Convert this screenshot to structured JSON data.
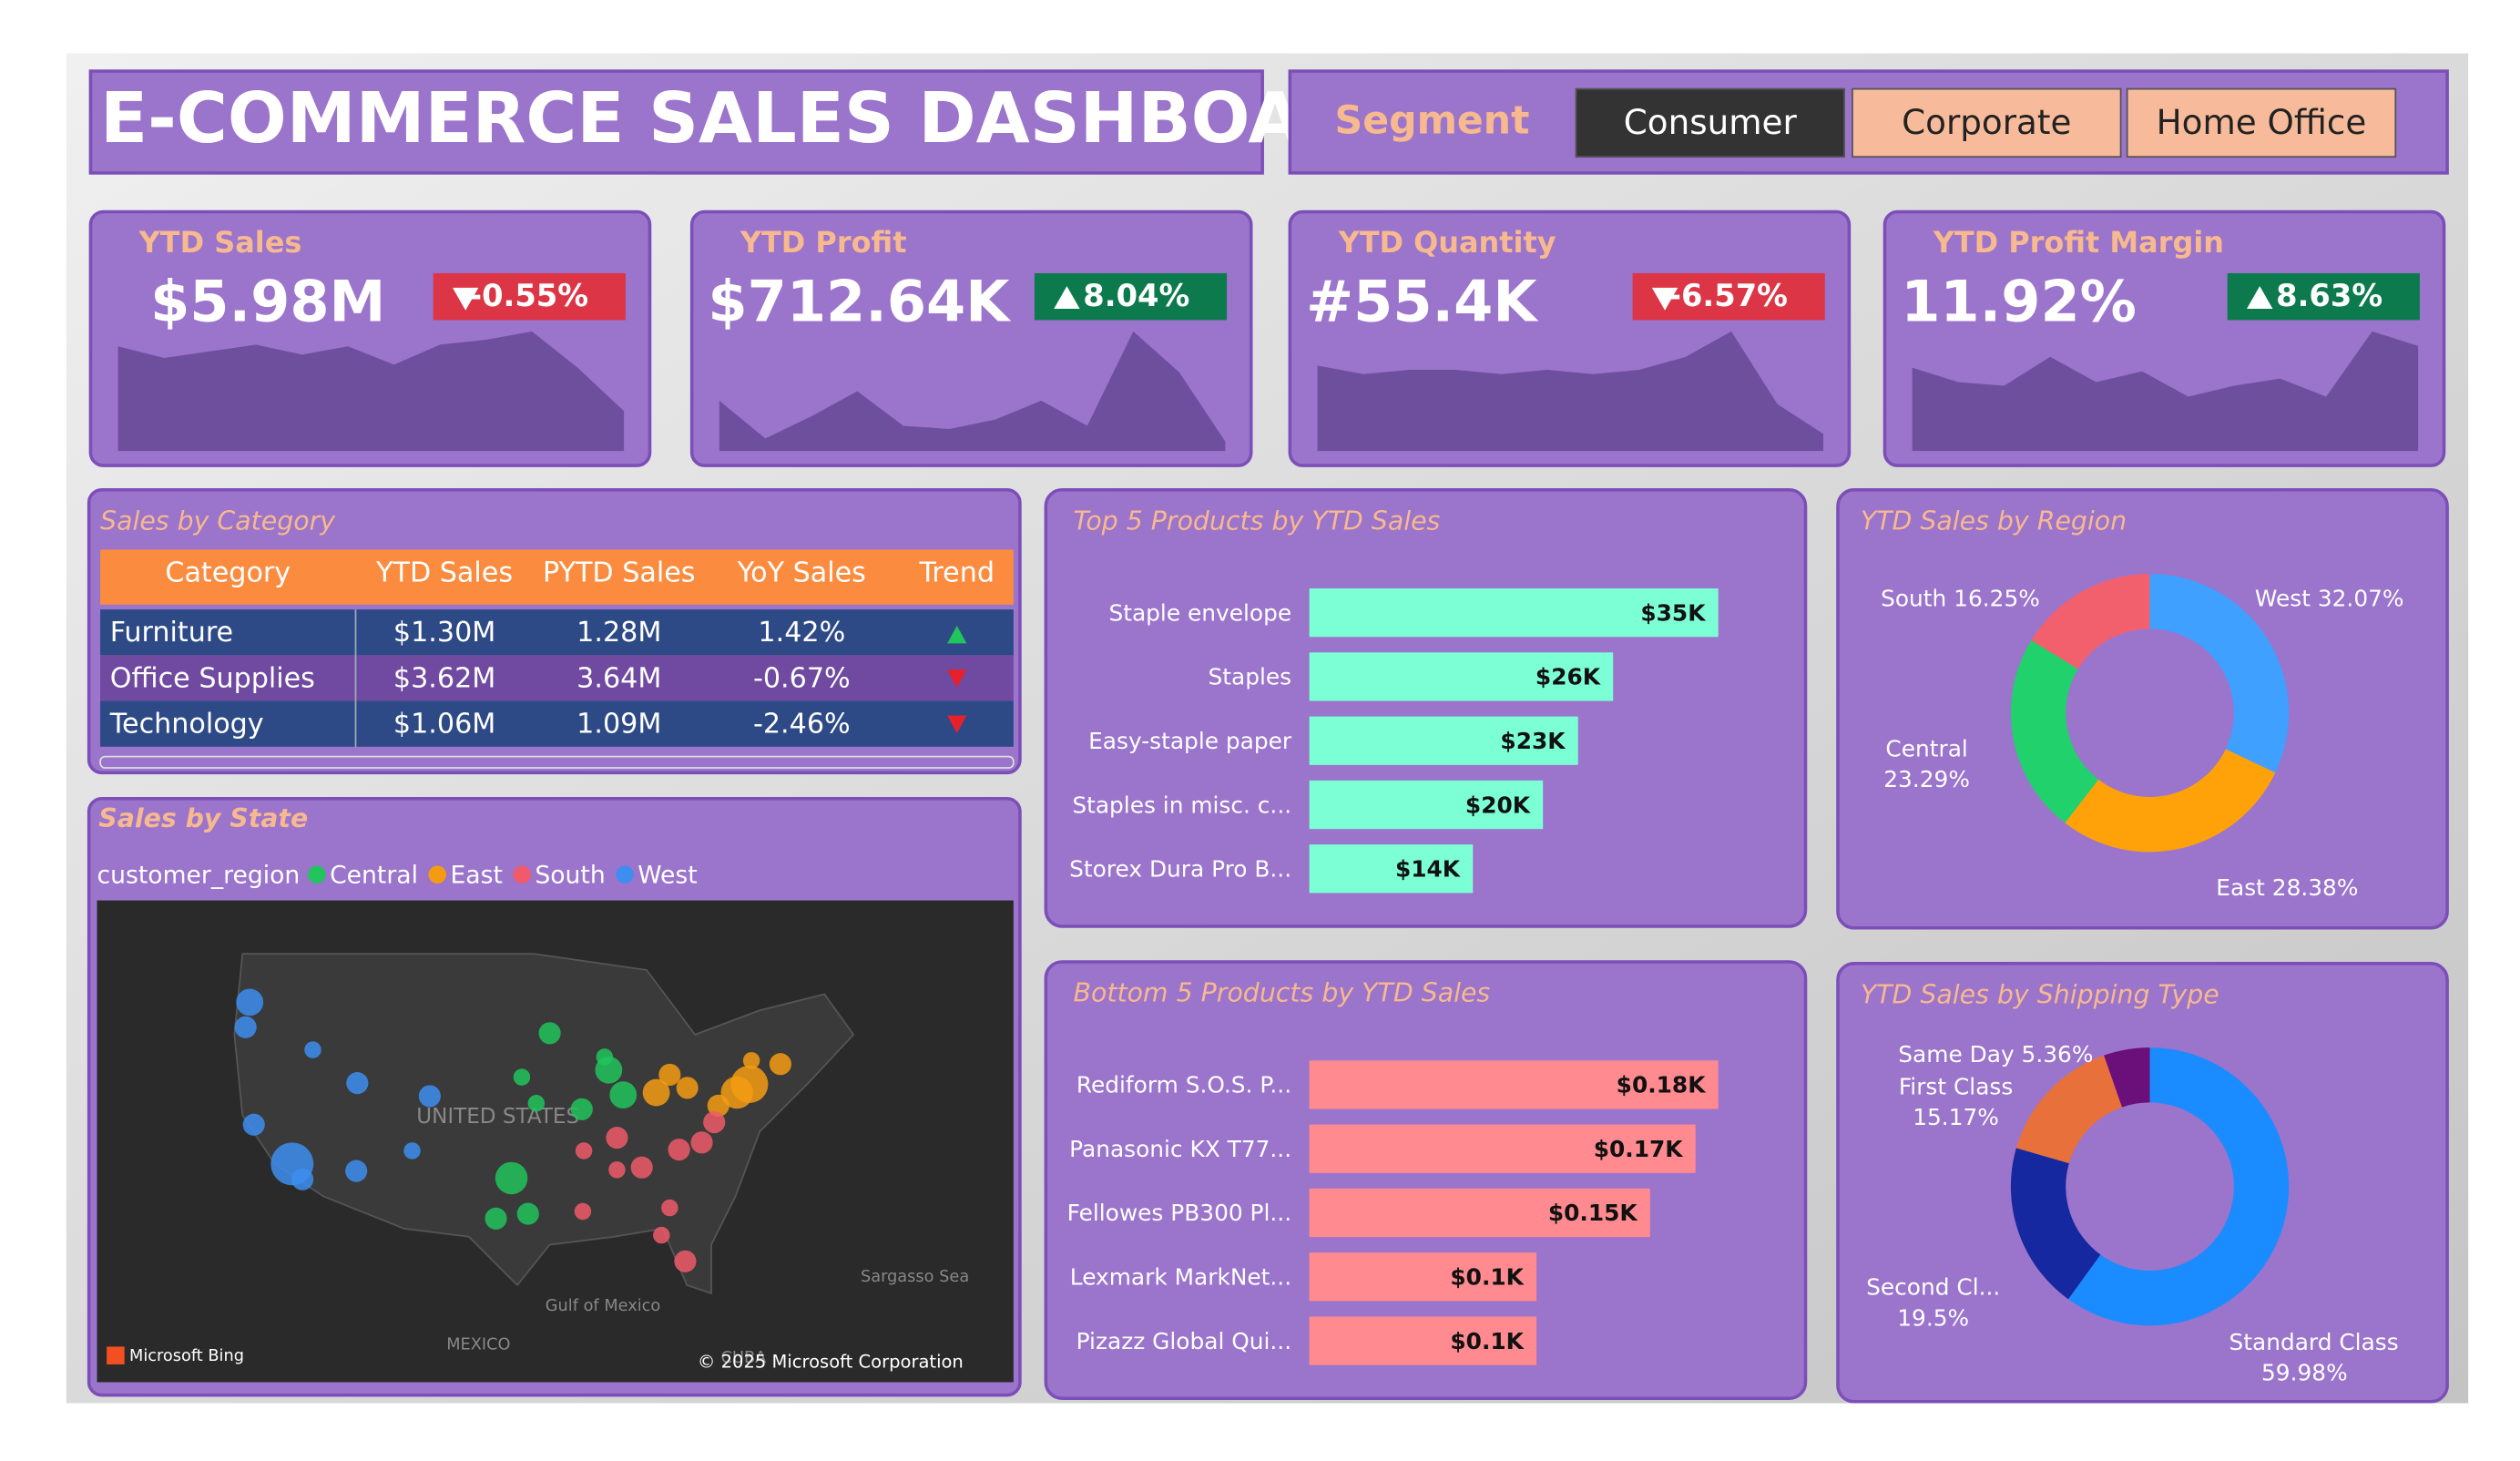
{
  "header": {
    "title": "E-COMMERCE SALES DASHBOARD"
  },
  "segment": {
    "label": "Segment",
    "options": [
      "Consumer",
      "Corporate",
      "Home Office"
    ]
  },
  "kpis": [
    {
      "title": "YTD Sales",
      "value": "$5.98M",
      "change": "-0.55%",
      "direction": "down",
      "sparkline": [
        6.3,
        5.6,
        6.0,
        6.4,
        5.8,
        6.3,
        5.2,
        6.4,
        6.7,
        7.2,
        5.0,
        2.4
      ]
    },
    {
      "title": "YTD Profit",
      "value": "$712.64K",
      "change": "8.04%",
      "direction": "up",
      "sparkline": [
        3.2,
        0.8,
        2.2,
        3.8,
        1.6,
        1.4,
        2.0,
        3.2,
        1.6,
        7.6,
        5.0,
        0.6
      ]
    },
    {
      "title": "YTD Quantity",
      "value": "#55.4K",
      "change": "-6.57%",
      "direction": "down",
      "sparkline": [
        4.0,
        3.6,
        3.8,
        3.8,
        3.6,
        3.8,
        3.6,
        3.8,
        4.4,
        5.6,
        2.2,
        0.8
      ]
    },
    {
      "title": "YTD Profit Margin",
      "value": "11.92%",
      "change": "8.63%",
      "direction": "up",
      "sparkline": [
        4.6,
        3.8,
        3.6,
        5.2,
        3.8,
        4.4,
        3.0,
        3.6,
        4.0,
        3.0,
        6.6,
        5.8
      ]
    }
  ],
  "category_table": {
    "title": "Sales by Category",
    "columns": [
      "Category",
      "YTD Sales",
      "PYTD Sales",
      "YoY Sales",
      "Trend"
    ],
    "rows": [
      [
        "Furniture",
        "$1.30M",
        "1.28M",
        "1.42%"
      ],
      [
        "Office Supplies",
        "$3.62M",
        "3.64M",
        "-0.67%"
      ],
      [
        "Technology",
        "$1.06M",
        "1.09M",
        "-2.46%"
      ]
    ],
    "trend": [
      "up",
      "down",
      "down"
    ]
  },
  "map": {
    "title": "Sales by State",
    "legend_title": "customer_region",
    "regions": [
      "Central",
      "East",
      "South",
      "West"
    ],
    "colors": [
      "#21c45d",
      "#f39c12",
      "#f05a6a",
      "#3d8ef0"
    ],
    "labels": [
      "UNITED STATES",
      "MEXICO",
      "Gulf of Mexico",
      "Sargasso Sea",
      "CUBA"
    ],
    "credit": "Microsoft Bing",
    "copyright": "© 2025 Microsoft Corporation",
    "points": [
      {
        "region": "West",
        "lon": -122.3,
        "lat": 47.6,
        "size": 4
      },
      {
        "region": "West",
        "lon": -122.7,
        "lat": 45.5,
        "size": 3
      },
      {
        "region": "West",
        "lon": -118.2,
        "lat": 34,
        "size": 7
      },
      {
        "region": "West",
        "lon": -117.2,
        "lat": 32.7,
        "size": 3
      },
      {
        "region": "West",
        "lon": -121.9,
        "lat": 37.3,
        "size": 3
      },
      {
        "region": "West",
        "lon": -112,
        "lat": 33.4,
        "size": 3
      },
      {
        "region": "West",
        "lon": -104.9,
        "lat": 39.7,
        "size": 3
      },
      {
        "region": "West",
        "lon": -111.9,
        "lat": 40.8,
        "size": 3
      },
      {
        "region": "West",
        "lon": -116.2,
        "lat": 43.6,
        "size": 2
      },
      {
        "region": "West",
        "lon": -106.6,
        "lat": 35.1,
        "size": 2
      },
      {
        "region": "Central",
        "lon": -97,
        "lat": 32.8,
        "size": 5
      },
      {
        "region": "Central",
        "lon": -95.4,
        "lat": 29.8,
        "size": 3
      },
      {
        "region": "Central",
        "lon": -98.5,
        "lat": 29.4,
        "size": 3
      },
      {
        "region": "Central",
        "lon": -87.6,
        "lat": 41.9,
        "size": 4
      },
      {
        "region": "Central",
        "lon": -93.3,
        "lat": 45,
        "size": 3
      },
      {
        "region": "Central",
        "lon": -90.2,
        "lat": 38.6,
        "size": 3
      },
      {
        "region": "Central",
        "lon": -94.6,
        "lat": 39.1,
        "size": 2
      },
      {
        "region": "Central",
        "lon": -96,
        "lat": 41.3,
        "size": 2
      },
      {
        "region": "Central",
        "lon": -88,
        "lat": 43,
        "size": 2
      },
      {
        "region": "Central",
        "lon": -86.2,
        "lat": 39.8,
        "size": 4
      },
      {
        "region": "East",
        "lon": -74,
        "lat": 40.7,
        "size": 6
      },
      {
        "region": "East",
        "lon": -75.2,
        "lat": 40,
        "size": 5
      },
      {
        "region": "East",
        "lon": -71,
        "lat": 42.4,
        "size": 3
      },
      {
        "region": "East",
        "lon": -77,
        "lat": 38.9,
        "size": 3
      },
      {
        "region": "East",
        "lon": -83,
        "lat": 40,
        "size": 4
      },
      {
        "region": "East",
        "lon": -81.7,
        "lat": 41.5,
        "size": 3
      },
      {
        "region": "East",
        "lon": -80,
        "lat": 40.4,
        "size": 3
      },
      {
        "region": "East",
        "lon": -73.8,
        "lat": 42.7,
        "size": 2
      },
      {
        "region": "South",
        "lon": -80.2,
        "lat": 25.8,
        "size": 3
      },
      {
        "region": "South",
        "lon": -84.4,
        "lat": 33.7,
        "size": 3
      },
      {
        "region": "South",
        "lon": -86.8,
        "lat": 36.2,
        "size": 3
      },
      {
        "region": "South",
        "lon": -90,
        "lat": 35.1,
        "size": 2
      },
      {
        "region": "South",
        "lon": -80.8,
        "lat": 35.2,
        "size": 3
      },
      {
        "region": "South",
        "lon": -78.6,
        "lat": 35.8,
        "size": 3
      },
      {
        "region": "South",
        "lon": -81.7,
        "lat": 30.3,
        "size": 2
      },
      {
        "region": "South",
        "lon": -86.8,
        "lat": 33.5,
        "size": 2
      },
      {
        "region": "South",
        "lon": -90.1,
        "lat": 30,
        "size": 2
      },
      {
        "region": "South",
        "lon": -77.4,
        "lat": 37.5,
        "size": 3
      },
      {
        "region": "South",
        "lon": -82.5,
        "lat": 28,
        "size": 2
      }
    ]
  },
  "chart_data": [
    {
      "type": "hbar",
      "title": "Top 5 Products by YTD Sales",
      "categories": [
        "Staple envelope",
        "Staples",
        "Easy-staple paper",
        "Staples in misc. c...",
        "Storex Dura Pro B..."
      ],
      "values": [
        35,
        26,
        23,
        20,
        14
      ],
      "value_labels": [
        "$35K",
        "$26K",
        "$23K",
        "$20K",
        "$14K"
      ],
      "color": "#7dffd6"
    },
    {
      "type": "hbar",
      "title": "Bottom 5 Products by YTD Sales",
      "categories": [
        "Rediform S.O.S. P...",
        "Panasonic KX T77...",
        "Fellowes PB300 Pl...",
        "Lexmark MarkNet...",
        "Pizazz Global Qui..."
      ],
      "values": [
        0.18,
        0.17,
        0.15,
        0.1,
        0.1
      ],
      "value_labels": [
        "$0.18K",
        "$0.17K",
        "$0.15K",
        "$0.1K",
        "$0.1K"
      ],
      "color": "#ff8a90"
    },
    {
      "type": "donut",
      "title": "YTD Sales by Region",
      "categories": [
        "West",
        "East",
        "Central",
        "South"
      ],
      "values": [
        32.07,
        28.38,
        23.29,
        16.25
      ],
      "value_labels": [
        "32.07%",
        "28.38%",
        "23.29%",
        "16.25%"
      ],
      "colors": [
        "#3fa0ff",
        "#ffa20a",
        "#21d16b",
        "#f2606e"
      ]
    },
    {
      "type": "donut",
      "title": "YTD Sales by Shipping Type",
      "categories": [
        "Standard Class",
        "Second Cl...",
        "First Class",
        "Same Day"
      ],
      "values": [
        59.98,
        19.5,
        15.17,
        5.36
      ],
      "value_labels": [
        "59.98%",
        "19.5%",
        "15.17%",
        "5.36%"
      ],
      "colors": [
        "#1a8cff",
        "#1528a0",
        "#e8703a",
        "#6b0f7a"
      ]
    }
  ]
}
